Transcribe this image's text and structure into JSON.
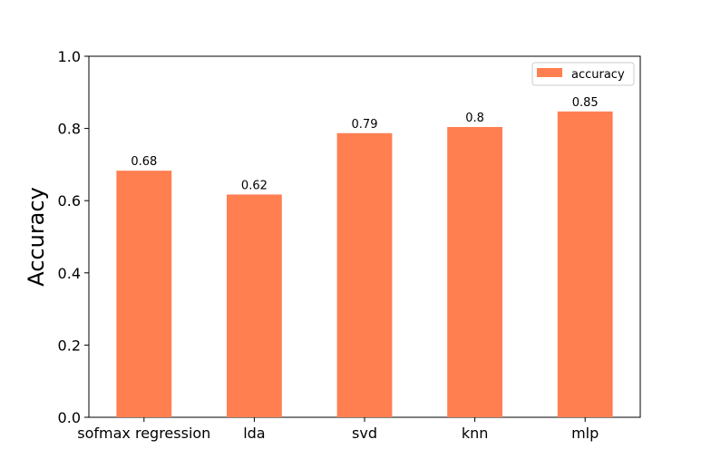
{
  "chart_data": {
    "type": "bar",
    "categories": [
      "sofmax regression",
      "lda",
      "svd",
      "knn",
      "mlp"
    ],
    "series": [
      {
        "name": "accuracy",
        "values": [
          0.683,
          0.617,
          0.787,
          0.804,
          0.847
        ]
      }
    ],
    "data_labels": [
      "0.68",
      "0.62",
      "0.79",
      "0.8",
      "0.85"
    ],
    "title": "",
    "xlabel": "",
    "ylabel": "Accuracy",
    "ylim": [
      0,
      1.0
    ],
    "yticks": [
      "0.0",
      "0.2",
      "0.4",
      "0.6",
      "0.8",
      "1.0"
    ],
    "grid": false,
    "legend_position": "top-right",
    "bar_color": "#ff7f50"
  }
}
